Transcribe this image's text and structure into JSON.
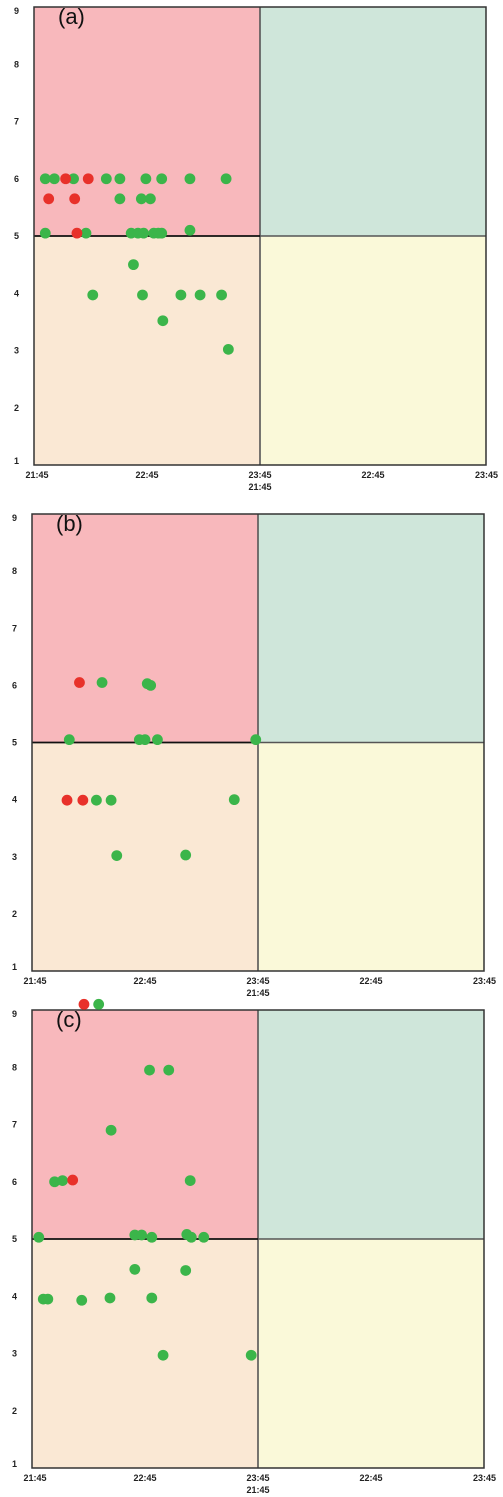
{
  "chart_data": [
    {
      "type": "scatter",
      "panel_label": "(a)",
      "x_tick_labels": [
        "21:45",
        "22:45",
        "23:45",
        "22:45",
        "23:45"
      ],
      "x_tick_label_second_axis": "21:45",
      "y_tick_labels": [
        "1",
        "2",
        "3",
        "4",
        "5",
        "6",
        "7",
        "8",
        "9"
      ],
      "xlim": [
        0,
        4
      ],
      "ylim": [
        1,
        9
      ],
      "threshold_x": 2,
      "threshold_y": 5,
      "quadrant_colors": {
        "top_left": "#F8B8BC",
        "top_right": "#CFE6DA",
        "bottom_left": "#FAE8D4",
        "bottom_right": "#FAF9D9"
      },
      "series": [
        {
          "color": "#3BB54A",
          "points": [
            [
              0.1,
              6.0
            ],
            [
              0.18,
              6.0
            ],
            [
              0.35,
              6.0
            ],
            [
              0.64,
              6.0
            ],
            [
              0.76,
              6.0
            ],
            [
              0.99,
              6.0
            ],
            [
              1.13,
              6.0
            ],
            [
              1.38,
              6.0
            ],
            [
              1.7,
              6.0
            ],
            [
              0.76,
              5.65
            ],
            [
              0.95,
              5.65
            ],
            [
              1.03,
              5.65
            ],
            [
              0.1,
              5.05
            ],
            [
              0.46,
              5.05
            ],
            [
              0.86,
              5.05
            ],
            [
              0.92,
              5.05
            ],
            [
              0.97,
              5.05
            ],
            [
              1.06,
              5.05
            ],
            [
              1.1,
              5.05
            ],
            [
              1.13,
              5.05
            ],
            [
              1.38,
              5.1
            ],
            [
              0.88,
              4.5
            ],
            [
              0.52,
              3.97
            ],
            [
              0.96,
              3.97
            ],
            [
              1.3,
              3.97
            ],
            [
              1.47,
              3.97
            ],
            [
              1.66,
              3.97
            ],
            [
              1.14,
              3.52
            ],
            [
              1.72,
              3.02
            ]
          ]
        },
        {
          "color": "#E8312A",
          "points": [
            [
              0.28,
              6.0
            ],
            [
              0.48,
              6.0
            ],
            [
              0.13,
              5.65
            ],
            [
              0.36,
              5.65
            ],
            [
              0.38,
              5.05
            ]
          ]
        }
      ]
    },
    {
      "type": "scatter",
      "panel_label": "(b)",
      "x_tick_labels": [
        "21:45",
        "22:45",
        "23:45",
        "22:45",
        "23:45"
      ],
      "x_tick_label_second_axis": "21:45",
      "y_tick_labels": [
        "1",
        "2",
        "3",
        "4",
        "5",
        "6",
        "7",
        "8",
        "9"
      ],
      "xlim": [
        0,
        4
      ],
      "ylim": [
        1,
        9
      ],
      "threshold_x": 2,
      "threshold_y": 5,
      "quadrant_colors": {
        "top_left": "#F8B8BC",
        "top_right": "#CFE6DA",
        "bottom_left": "#FAE8D4",
        "bottom_right": "#FAF9D9"
      },
      "series": [
        {
          "color": "#3BB54A",
          "points": [
            [
              0.62,
              6.05
            ],
            [
              1.02,
              6.03
            ],
            [
              1.05,
              6.0
            ],
            [
              0.33,
              5.05
            ],
            [
              0.95,
              5.05
            ],
            [
              1.0,
              5.05
            ],
            [
              1.11,
              5.05
            ],
            [
              1.98,
              5.05
            ],
            [
              0.57,
              3.99
            ],
            [
              0.7,
              3.99
            ],
            [
              1.79,
              4.0
            ],
            [
              0.75,
              3.02
            ],
            [
              1.36,
              3.03
            ]
          ]
        },
        {
          "color": "#E8312A",
          "points": [
            [
              0.42,
              6.05
            ],
            [
              0.31,
              3.99
            ],
            [
              0.45,
              3.99
            ]
          ]
        }
      ]
    },
    {
      "type": "scatter",
      "panel_label": "(c)",
      "x_tick_labels": [
        "21:45",
        "22:45",
        "23:45",
        "22:45",
        "23:45"
      ],
      "x_tick_label_second_axis": "21:45",
      "y_tick_labels": [
        "1",
        "2",
        "3",
        "4",
        "5",
        "6",
        "7",
        "8",
        "9"
      ],
      "xlim": [
        0,
        4
      ],
      "ylim": [
        1,
        9
      ],
      "threshold_x": 2,
      "threshold_y": 5,
      "quadrant_colors": {
        "top_left": "#F8B8BC",
        "top_right": "#CFE6DA",
        "bottom_left": "#FAE8D4",
        "bottom_right": "#FAF9D9"
      },
      "series": [
        {
          "color": "#3BB54A",
          "points": [
            [
              0.59,
              9.1
            ],
            [
              1.04,
              7.95
            ],
            [
              1.21,
              7.95
            ],
            [
              0.7,
              6.9
            ],
            [
              0.2,
              6.0
            ],
            [
              0.27,
              6.02
            ],
            [
              1.4,
              6.02
            ],
            [
              0.06,
              5.03
            ],
            [
              0.91,
              5.07
            ],
            [
              0.97,
              5.07
            ],
            [
              1.06,
              5.03
            ],
            [
              1.37,
              5.08
            ],
            [
              1.41,
              5.03
            ],
            [
              1.52,
              5.03
            ],
            [
              0.91,
              4.47
            ],
            [
              1.36,
              4.45
            ],
            [
              0.1,
              3.95
            ],
            [
              0.14,
              3.95
            ],
            [
              0.44,
              3.93
            ],
            [
              0.69,
              3.97
            ],
            [
              1.06,
              3.97
            ],
            [
              1.16,
              2.97
            ],
            [
              1.94,
              2.97
            ]
          ]
        },
        {
          "color": "#E8312A",
          "points": [
            [
              0.46,
              9.1
            ],
            [
              0.36,
              6.03
            ]
          ]
        }
      ]
    }
  ]
}
